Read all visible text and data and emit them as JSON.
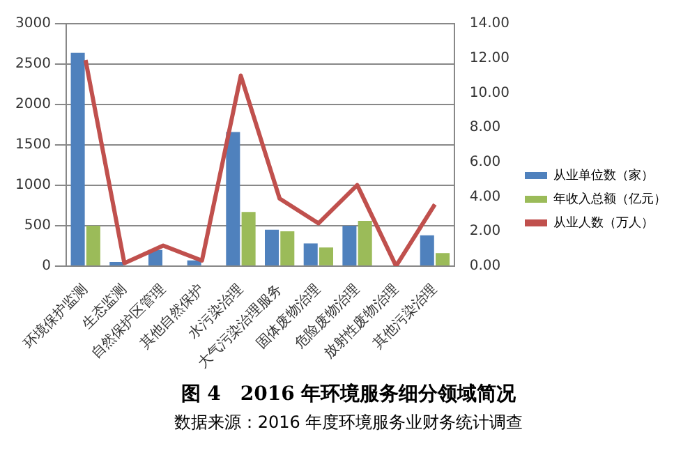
{
  "chart_data": {
    "type": "bar",
    "title": "图 4　2016 年环境服务细分领域简况",
    "annotations": [
      "数据来源：2016 年度环境服务业财务统计调查"
    ],
    "categories": [
      "环境保护监测",
      "生态监测",
      "自然保护区管理",
      "其他自然保护",
      "水污染治理",
      "大气污染治理服务",
      "固体废物治理",
      "危险废物治理",
      "放射性废物治理",
      "其他污染治理"
    ],
    "series": [
      {
        "name": "从业单位数（家）",
        "color": "#4f81bd",
        "values": [
          2640,
          50,
          200,
          70,
          1660,
          450,
          280,
          500,
          0,
          380
        ]
      },
      {
        "name": "年收入总额（亿元）",
        "color": "#9bbb59",
        "values": [
          500,
          null,
          0,
          0,
          670,
          430,
          230,
          560,
          0,
          160
        ]
      },
      {
        "name": "从业人数（万人）",
        "type": "line",
        "axis": "y2",
        "color": "#c0504d",
        "values": [
          11.9,
          0.17,
          1.18,
          0.32,
          11.0,
          3.9,
          2.47,
          4.68,
          0,
          3.56
        ]
      }
    ],
    "ylim": [
      0,
      3000
    ],
    "yticks": [
      0,
      500,
      1000,
      1500,
      2000,
      2500,
      3000
    ],
    "y2lim": [
      0,
      14
    ],
    "y2ticks": [
      {
        "value": 0,
        "label": "0.00"
      },
      {
        "value": 2,
        "label": "2.00"
      },
      {
        "value": 4,
        "label": "4.00"
      },
      {
        "value": 6,
        "label": "6.00"
      },
      {
        "value": 8,
        "label": "8.00"
      },
      {
        "value": 10,
        "label": "10.00"
      },
      {
        "value": 12,
        "label": "12.00"
      },
      {
        "value": 14,
        "label": "14.00"
      }
    ],
    "grid": "y",
    "legend": "right",
    "marker": "none"
  }
}
